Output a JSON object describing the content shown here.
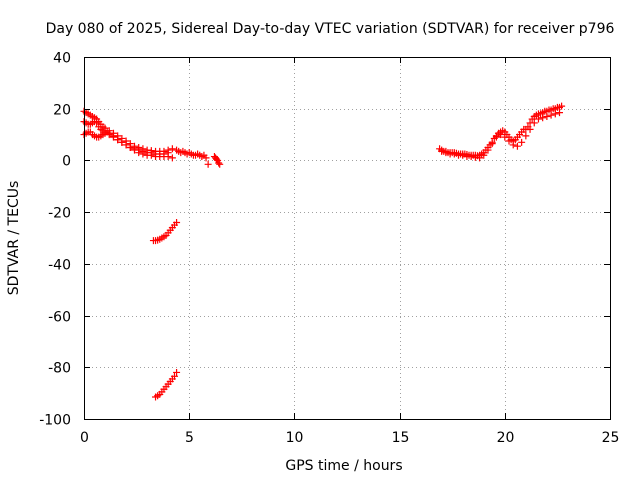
{
  "chart_data": {
    "type": "scatter",
    "title": "Day 080 of 2025, Sidereal Day-to-day VTEC variation (SDTVAR) for receiver p796",
    "xlabel": "GPS time / hours",
    "ylabel": "SDTVAR / TECUs",
    "xlim": [
      0,
      25
    ],
    "ylim": [
      -100,
      40
    ],
    "xticks": [
      0,
      5,
      10,
      15,
      20,
      25
    ],
    "yticks": [
      -100,
      -80,
      -60,
      -40,
      -20,
      0,
      20,
      40
    ],
    "xtick_labels": [
      "0",
      "5",
      "10",
      "15",
      "20",
      "25"
    ],
    "ytick_labels": [
      "-100",
      "-80",
      "-60",
      "-40",
      "-20",
      "0",
      "20",
      "40"
    ],
    "grid": true,
    "marker": "plus",
    "color": "#ff0000",
    "series": [
      {
        "name": "arc-early-upper",
        "x": [
          0.0,
          0.1,
          0.2,
          0.3,
          0.4,
          0.5,
          0.6,
          0.7,
          0.8,
          0.9,
          1.0,
          1.2,
          1.4,
          1.6,
          1.8,
          2.0,
          2.2,
          2.4,
          2.6,
          2.8,
          3.0,
          3.2,
          3.4,
          3.6,
          3.8,
          4.0,
          4.2,
          4.4
        ],
        "y": [
          19,
          18.5,
          18,
          17.5,
          17,
          16.5,
          16,
          15,
          14,
          13,
          12.5,
          11.5,
          10.5,
          9.5,
          8.5,
          7.5,
          6.5,
          5.5,
          5,
          4.5,
          4,
          3.8,
          3.5,
          3.5,
          3.5,
          4,
          4.5,
          4
        ]
      },
      {
        "name": "arc-early-middle",
        "x": [
          0.0,
          0.1,
          0.2,
          0.3,
          0.4,
          0.5,
          0.6,
          0.7,
          0.8,
          0.9,
          1.0,
          1.2,
          1.4,
          1.6,
          1.8,
          2.0,
          2.2,
          2.4,
          2.6,
          2.8,
          3.0,
          3.2,
          3.4,
          3.6,
          3.8,
          4.0
        ],
        "y": [
          15,
          14.5,
          14,
          14,
          14.5,
          15,
          14.5,
          13,
          12,
          11.5,
          11,
          10,
          9,
          8,
          7,
          6,
          5,
          4.5,
          4,
          3.5,
          3,
          3,
          2.5,
          2.5,
          2.5,
          3
        ]
      },
      {
        "name": "arc-early-lower",
        "x": [
          0.0,
          0.1,
          0.2,
          0.3,
          0.4,
          0.5,
          0.6,
          0.7,
          0.8,
          0.9,
          1.0,
          1.1,
          1.2,
          1.4,
          1.6,
          1.8,
          2.0,
          2.2,
          2.4,
          2.6,
          2.8,
          3.0,
          3.2,
          3.4,
          3.6,
          3.8,
          4.0,
          4.2
        ],
        "y": [
          10,
          10.5,
          11,
          11,
          10,
          9.5,
          9,
          9,
          9.5,
          10,
          10.5,
          11,
          10.5,
          9.5,
          8,
          7,
          6,
          5,
          4,
          3,
          2.5,
          2,
          2,
          1.5,
          1.5,
          1.5,
          1.5,
          1
        ]
      },
      {
        "name": "arc-late-morning",
        "x": [
          4.5,
          4.6,
          4.7,
          4.8,
          4.9,
          5.0,
          5.1,
          5.2,
          5.3,
          5.4,
          5.5,
          5.6,
          5.7,
          5.8,
          5.9
        ],
        "y": [
          3.5,
          3,
          3.5,
          3,
          2.5,
          3,
          2.5,
          2,
          2,
          2.5,
          2,
          1.5,
          2,
          1,
          -1.5
        ]
      },
      {
        "name": "arc-short-isolated",
        "x": [
          6.2,
          6.25,
          6.3,
          6.35,
          6.4,
          6.45
        ],
        "y": [
          1.5,
          1,
          0.5,
          0,
          -1,
          -1.5
        ]
      },
      {
        "name": "arc-offset-30",
        "x": [
          3.3,
          3.4,
          3.5,
          3.6,
          3.7,
          3.8,
          3.9,
          4.0,
          4.1,
          4.2,
          4.3,
          4.4
        ],
        "y": [
          -31,
          -31,
          -30.8,
          -30.5,
          -30,
          -29.5,
          -29,
          -28,
          -27,
          -26,
          -25,
          -24
        ]
      },
      {
        "name": "arc-offset-90",
        "x": [
          3.4,
          3.5,
          3.6,
          3.7,
          3.8,
          3.9,
          4.0,
          4.1,
          4.2,
          4.3,
          4.4
        ],
        "y": [
          -91.5,
          -91,
          -90.5,
          -89.5,
          -88.5,
          -87.5,
          -86.5,
          -85.5,
          -84.5,
          -83.5,
          -82
        ]
      },
      {
        "name": "arc-evening",
        "x": [
          16.9,
          17.0,
          17.1,
          17.2,
          17.3,
          17.4,
          17.5,
          17.6,
          17.7,
          17.8,
          17.9,
          18.0,
          18.1,
          18.2,
          18.3,
          18.4,
          18.5,
          18.6,
          18.7,
          18.8,
          18.9,
          19.0,
          19.1,
          19.2,
          19.3,
          19.4,
          19.5,
          19.6,
          19.7,
          19.8,
          19.9,
          20.0,
          20.1,
          20.2,
          20.3,
          20.4,
          20.5,
          20.6,
          20.7,
          20.8,
          20.9,
          21.0,
          21.1,
          21.2,
          21.3,
          21.4,
          21.5,
          21.6,
          21.7,
          21.8,
          21.9,
          22.0,
          22.1,
          22.2,
          22.3,
          22.4,
          22.5,
          22.6,
          22.7
        ],
        "y": [
          4.5,
          4,
          3.5,
          3.5,
          3,
          3,
          3,
          3,
          2.8,
          2.5,
          2.5,
          2.5,
          2.5,
          2.3,
          2,
          2,
          2,
          2,
          1.8,
          2,
          2.5,
          3,
          4,
          5,
          6,
          7,
          8.5,
          9.5,
          10.5,
          11,
          11.5,
          11,
          10,
          9,
          8,
          7.5,
          8,
          9,
          10,
          11,
          12,
          12,
          13,
          14.5,
          16,
          17,
          17.5,
          18,
          18,
          18.5,
          19,
          19,
          19.5,
          19.5,
          20,
          20,
          20.5,
          20.5,
          21
        ]
      },
      {
        "name": "arc-evening-lower",
        "x": [
          17.0,
          17.2,
          17.4,
          17.6,
          17.8,
          18.0,
          18.2,
          18.4,
          18.6,
          18.8,
          19.0,
          19.2,
          19.4,
          19.6,
          19.8,
          20.0,
          20.2,
          20.4,
          20.6,
          20.8,
          21.0,
          21.2,
          21.4,
          21.6,
          21.8,
          22.0,
          22.2,
          22.4,
          22.6
        ],
        "y": [
          3.5,
          3,
          2.5,
          2.5,
          2,
          2,
          1.5,
          1.5,
          1.2,
          1,
          2,
          4,
          6.5,
          9,
          10,
          9,
          7.5,
          6,
          5.5,
          7,
          9.5,
          12,
          14.5,
          16,
          16.5,
          17,
          17.5,
          18,
          18.5
        ]
      }
    ]
  }
}
